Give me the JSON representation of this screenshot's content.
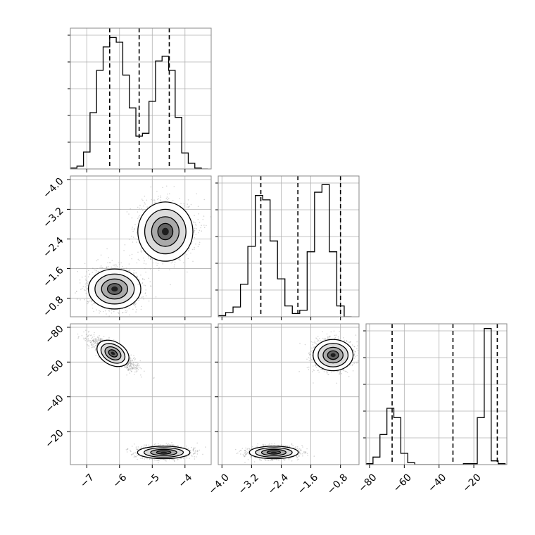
{
  "chart_data": {
    "type": "corner",
    "parameters": 3,
    "grid": true,
    "panels": [
      {
        "id": "hist-p1",
        "type": "histogram",
        "row": 0,
        "col": 0,
        "x_range": [
          -7.5,
          -3.2
        ],
        "bin_edges": [
          -7.5,
          -7.3,
          -7.1,
          -6.9,
          -6.7,
          -6.5,
          -6.3,
          -6.1,
          -5.9,
          -5.7,
          -5.5,
          -5.3,
          -5.1,
          -4.9,
          -4.7,
          -4.5,
          -4.3,
          -4.1,
          -3.9,
          -3.7,
          -3.5,
          -3.3
        ],
        "values": [
          1,
          3,
          18,
          60,
          105,
          130,
          140,
          135,
          100,
          65,
          35,
          38,
          72,
          115,
          120,
          105,
          55,
          17,
          6,
          1,
          0
        ],
        "y_max": 150,
        "quantile_lines": [
          -6.3,
          -5.4,
          -4.48
        ]
      },
      {
        "id": "scatter-p1-p2",
        "type": "2d-density",
        "row": 1,
        "col": 0,
        "x_range": [
          -7.5,
          -3.2
        ],
        "y_range": [
          -4.1,
          -0.3
        ],
        "clusters": [
          {
            "cx": -6.15,
            "cy": -1.05,
            "sx": 0.4,
            "sy": 0.27,
            "n": 1300
          },
          {
            "cx": -4.6,
            "cy": -2.6,
            "sx": 0.42,
            "sy": 0.4,
            "n": 1300
          }
        ]
      },
      {
        "id": "hist-p2",
        "type": "histogram",
        "row": 1,
        "col": 1,
        "x_range": [
          -4.1,
          -0.3
        ],
        "bin_edges": [
          -4.1,
          -3.9,
          -3.7,
          -3.5,
          -3.3,
          -3.1,
          -2.9,
          -2.7,
          -2.5,
          -2.3,
          -2.1,
          -1.9,
          -1.7,
          -1.5,
          -1.3,
          -1.1,
          -0.9,
          -0.7,
          -0.5
        ],
        "values": [
          1,
          4,
          9,
          30,
          65,
          112,
          108,
          70,
          35,
          10,
          3,
          6,
          60,
          115,
          122,
          60,
          10,
          0
        ],
        "y_max": 130,
        "quantile_lines": [
          -2.95,
          -1.95,
          -0.8
        ]
      },
      {
        "id": "scatter-p1-p3",
        "type": "2d-density",
        "row": 2,
        "col": 0,
        "x_range": [
          -7.5,
          -3.2
        ],
        "y_range": [
          -82,
          -1
        ],
        "clusters": [
          {
            "cx": -4.65,
            "cy": -8,
            "sx": 0.4,
            "sy": 1.8,
            "n": 1300
          },
          {
            "cx": -6.2,
            "cy": -65,
            "sx": 0.35,
            "sy": 4.5,
            "n": 1300,
            "rho": 0.85
          }
        ]
      },
      {
        "id": "scatter-p2-p3",
        "type": "2d-density",
        "row": 2,
        "col": 1,
        "x_range": [
          -4.1,
          -0.3
        ],
        "y_range": [
          -82,
          -1
        ],
        "clusters": [
          {
            "cx": -2.6,
            "cy": -8,
            "sx": 0.33,
            "sy": 1.8,
            "n": 1300
          },
          {
            "cx": -1.0,
            "cy": -64,
            "sx": 0.27,
            "sy": 4.5,
            "n": 1300
          }
        ]
      },
      {
        "id": "hist-p3",
        "type": "histogram",
        "row": 2,
        "col": 2,
        "x_range": [
          -82,
          -1
        ],
        "bin_edges": [
          -82,
          -78,
          -74,
          -70,
          -66,
          -62,
          -58,
          -54,
          -50,
          -46,
          -42,
          -38,
          -34,
          -30,
          -26,
          -22,
          -18,
          -14,
          -10,
          -6,
          -2
        ],
        "values": [
          1,
          8,
          32,
          60,
          50,
          12,
          2,
          0,
          0,
          0,
          0,
          0,
          0,
          0,
          1,
          1,
          50,
          145,
          4,
          1
        ],
        "y_max": 150,
        "quantile_lines": [
          -67,
          -32,
          -6.5
        ]
      }
    ],
    "x_axes": [
      {
        "col": 0,
        "ticks": [
          -7,
          -6,
          -5,
          -4
        ],
        "labels": [
          "−7",
          "−6",
          "−5",
          "−4"
        ]
      },
      {
        "col": 1,
        "ticks": [
          -4.0,
          -3.2,
          -2.4,
          -1.6,
          -0.8
        ],
        "labels": [
          "−4.0",
          "−3.2",
          "−2.4",
          "−1.6",
          "−0.8"
        ]
      },
      {
        "col": 2,
        "ticks": [
          -80,
          -60,
          -40,
          -20
        ],
        "labels": [
          "−80",
          "−60",
          "−40",
          "−20"
        ]
      }
    ],
    "y_axes": [
      {
        "row": 1,
        "ticks": [
          -0.8,
          -1.6,
          -2.4,
          -3.2,
          -4.0
        ],
        "labels": [
          "−0.8",
          "−1.6",
          "−2.4",
          "−3.2",
          "−4.0"
        ]
      },
      {
        "row": 2,
        "ticks": [
          -20,
          -40,
          -60,
          -80
        ],
        "labels": [
          "−20",
          "−40",
          "−60",
          "−80"
        ]
      }
    ],
    "colors": {
      "hist": "#000000",
      "points": "#888888",
      "grid": "#b0b0b0",
      "frame": "#888888"
    }
  }
}
